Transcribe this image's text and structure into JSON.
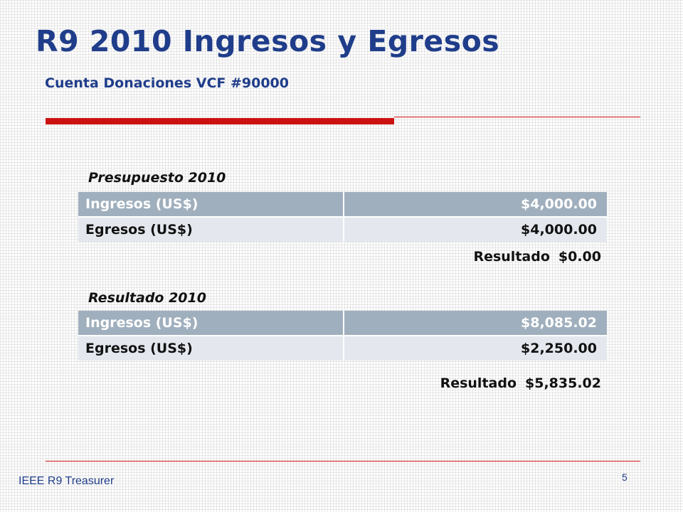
{
  "slide": {
    "title": "R9 2010 Ingresos y Egresos",
    "subtitle": "Cuenta Donaciones VCF  #90000",
    "accent_color": "#cc1111",
    "title_color": "#1f3d8a"
  },
  "budget": {
    "heading": "Presupuesto 2010",
    "rows": [
      {
        "label": "Ingresos (US$)",
        "value": "$4,000.00"
      },
      {
        "label": "Egresos (US$)",
        "value": "$4,000.00"
      }
    ],
    "result_label": "Resultado",
    "result_value": "$0.00"
  },
  "actual": {
    "heading": "Resultado 2010",
    "rows": [
      {
        "label": "Ingresos (US$)",
        "value": "$8,085.02"
      },
      {
        "label": "Egresos (US$)",
        "value": "$2,250.00"
      }
    ],
    "result_label": "Resultado",
    "result_value": "$5,835.02"
  },
  "footer": {
    "text": "IEEE R9 Treasurer",
    "page_number": "5"
  }
}
